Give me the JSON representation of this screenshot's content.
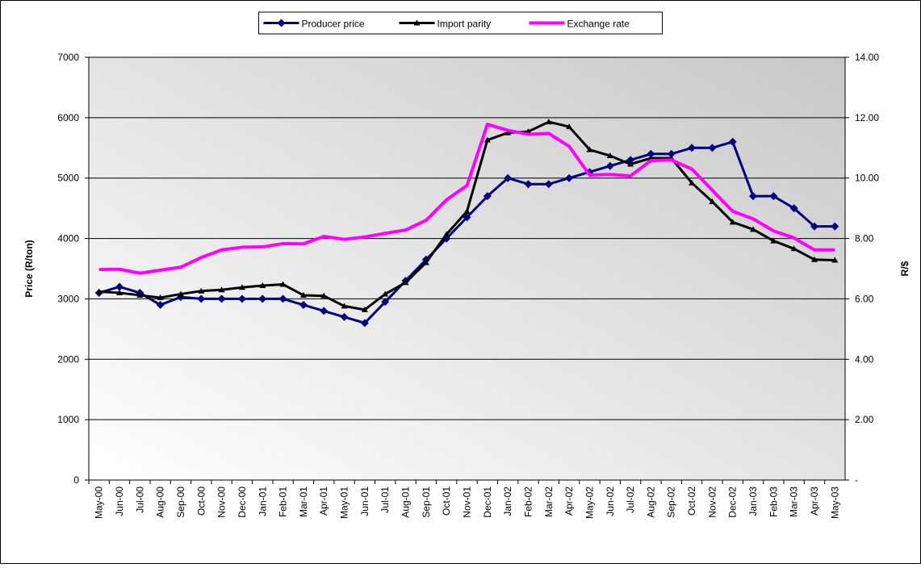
{
  "chart_data": {
    "type": "line",
    "categories": [
      "May-00",
      "Jun-00",
      "Jul-00",
      "Aug-00",
      "Sep-00",
      "Oct-00",
      "Nov-00",
      "Dec-00",
      "Jan-01",
      "Feb-01",
      "Mar-01",
      "Apr-01",
      "May-01",
      "Jun-01",
      "Jul-01",
      "Aug-01",
      "Sep-01",
      "Oct-01",
      "Nov-01",
      "Dec-01",
      "Jan-02",
      "Feb-02",
      "Mar-02",
      "Apr-02",
      "May-02",
      "Jun-02",
      "Jul-02",
      "Aug-02",
      "Sep-02",
      "Oct-02",
      "Nov-02",
      "Dec-02",
      "Jan-03",
      "Feb-03",
      "Mar-03",
      "Apr-03",
      "May-03"
    ],
    "ylabel": "Price (R/ton)",
    "y2label": "R/$",
    "ylim": [
      0,
      7000
    ],
    "yticks": [
      0,
      1000,
      2000,
      3000,
      4000,
      5000,
      6000,
      7000
    ],
    "y2lim": [
      0,
      14
    ],
    "y2ticks": [
      {
        "value": 0,
        "label": "-"
      },
      {
        "value": 2,
        "label": "2.00"
      },
      {
        "value": 4,
        "label": "4.00"
      },
      {
        "value": 6,
        "label": "6.00"
      },
      {
        "value": 8,
        "label": "8.00"
      },
      {
        "value": 10,
        "label": "10.00"
      },
      {
        "value": 12,
        "label": "12.00"
      },
      {
        "value": 14,
        "label": "14.00"
      }
    ],
    "grid": true,
    "legend": "top",
    "series": [
      {
        "name": "Producer price",
        "color": "#000080",
        "marker": "diamond",
        "values": [
          3100,
          3200,
          3100,
          2900,
          3030,
          3000,
          3000,
          3000,
          3000,
          3000,
          2900,
          2800,
          2700,
          2600,
          2950,
          3300,
          3650,
          4000,
          4350,
          4700,
          5000,
          4900,
          4900,
          5000,
          5100,
          5200,
          5300,
          5400,
          5400,
          5500,
          5500,
          5600,
          4700,
          4700,
          4500,
          4200,
          4200
        ]
      },
      {
        "name": "Import parity",
        "color": "#000000",
        "marker": "triangle",
        "values": [
          3120,
          3100,
          3060,
          3020,
          3080,
          3130,
          3150,
          3190,
          3220,
          3240,
          3060,
          3050,
          2880,
          2820,
          3080,
          3270,
          3600,
          4070,
          4450,
          5630,
          5750,
          5770,
          5930,
          5850,
          5470,
          5370,
          5230,
          5330,
          5330,
          4920,
          4610,
          4270,
          4150,
          3960,
          3830,
          3650,
          3640
        ]
      },
      {
        "name": "Exchange rate",
        "color": "#ff00ff",
        "axis": "y2",
        "values": [
          6.97,
          6.98,
          6.85,
          6.95,
          7.05,
          7.37,
          7.62,
          7.71,
          7.72,
          7.83,
          7.82,
          8.07,
          7.97,
          8.05,
          8.17,
          8.28,
          8.6,
          9.28,
          9.75,
          11.78,
          11.58,
          11.45,
          11.48,
          11.05,
          10.1,
          10.12,
          10.07,
          10.58,
          10.6,
          10.3,
          9.6,
          8.9,
          8.65,
          8.25,
          8.02,
          7.62,
          7.62
        ]
      }
    ]
  }
}
